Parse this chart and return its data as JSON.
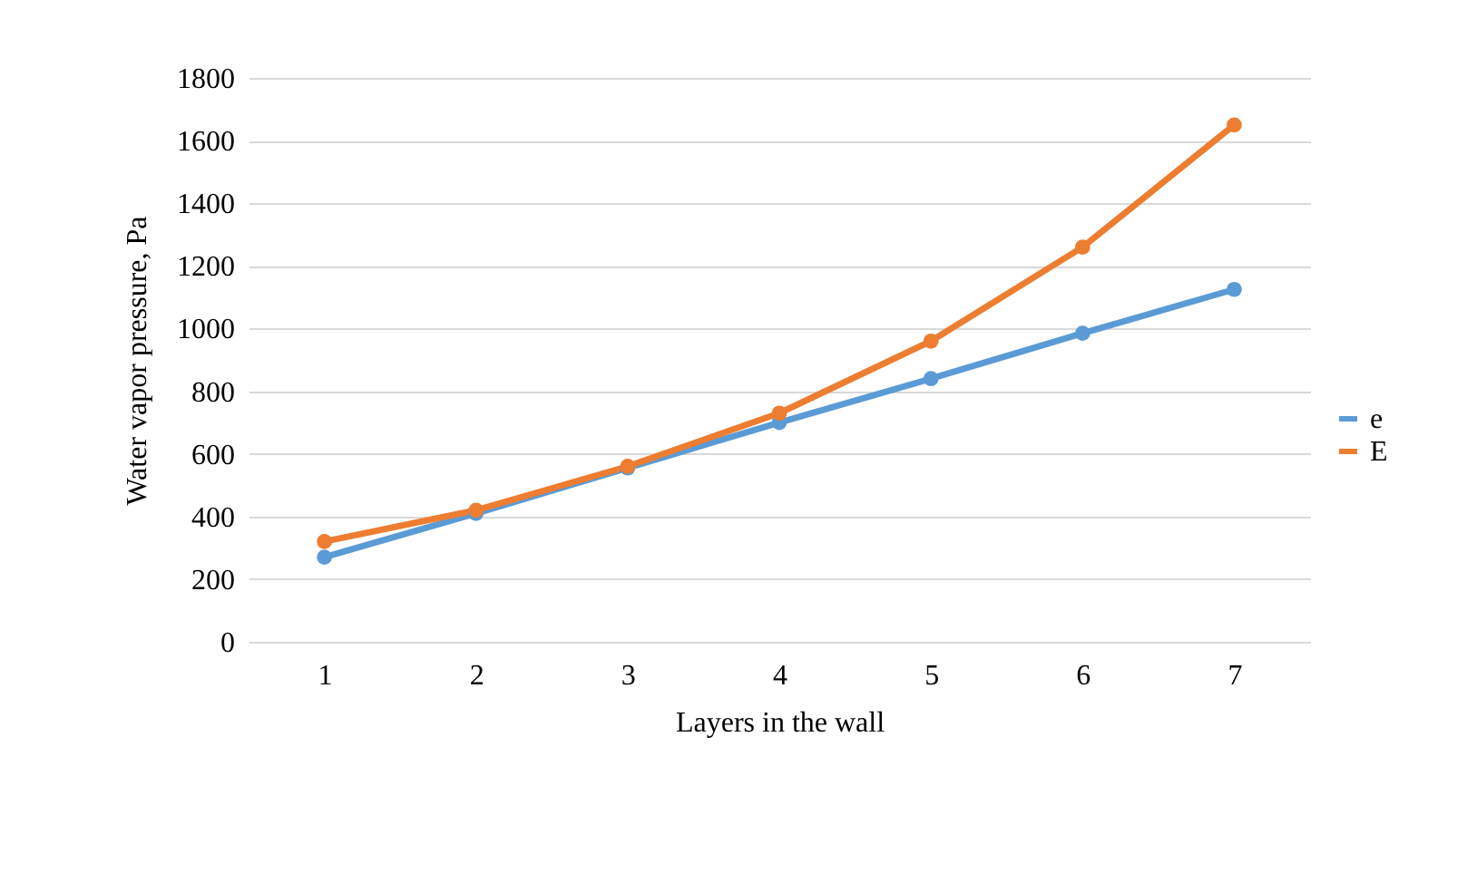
{
  "chart_data": {
    "type": "line",
    "xlabel": "Layers in the wall",
    "ylabel": "Water vapor pressure, Pa",
    "categories": [
      "1",
      "2",
      "3",
      "4",
      "5",
      "6",
      "7"
    ],
    "series": [
      {
        "name": "e",
        "color": "#5b9bd5",
        "values": [
          270,
          410,
          555,
          700,
          840,
          985,
          1125
        ]
      },
      {
        "name": "E",
        "color": "#ed7d31",
        "values": [
          320,
          420,
          560,
          730,
          960,
          1260,
          1650
        ]
      }
    ],
    "ylim": [
      0,
      1800
    ],
    "yticks": [
      0,
      200,
      400,
      600,
      800,
      1000,
      1200,
      1400,
      1600,
      1800
    ],
    "grid": "y",
    "legend": "right",
    "marker": "circle",
    "line_style": "solid"
  }
}
